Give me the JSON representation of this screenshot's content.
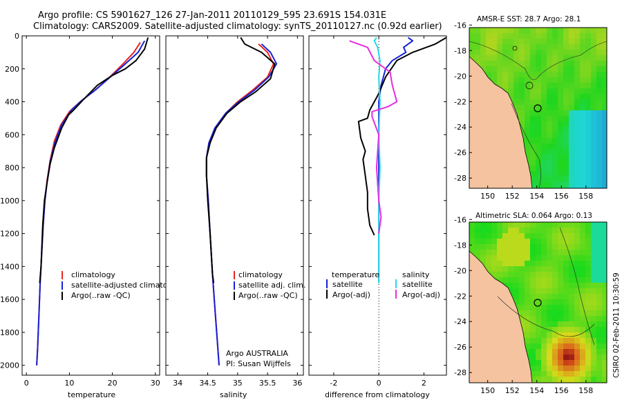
{
  "title": {
    "line1": "Argo profile: CS 5901627_126 27-Jan-2011 20110129_595 23.691S 154.031E",
    "line2": "Climatology: CARS2009. Satellite-adjusted climatology: synTS_20110127.nc (0.92d earlier)"
  },
  "depth_ticks": [
    "0",
    "200",
    "400",
    "600",
    "800",
    "1000",
    "1200",
    "1400",
    "1600",
    "1800",
    "2000"
  ],
  "chart_data": [
    {
      "type": "line",
      "name": "temperature",
      "xlabel": "temperature",
      "xlim": [
        -1,
        31
      ],
      "ylim": [
        0,
        2060
      ],
      "x_ticks": [
        "0",
        "10",
        "20",
        "30"
      ],
      "y_reversed": true,
      "series": [
        {
          "name": "climatology",
          "color": "#e8231f",
          "points": [
            [
              26.5,
              40
            ],
            [
              25,
              100
            ],
            [
              22.5,
              170
            ],
            [
              19,
              260
            ],
            [
              15.5,
              340
            ],
            [
              12.5,
              400
            ],
            [
              10,
              460
            ],
            [
              8,
              540
            ],
            [
              6.5,
              640
            ],
            [
              5.5,
              760
            ],
            [
              4.8,
              880
            ],
            [
              4.3,
              1000
            ],
            [
              3.9,
              1150
            ],
            [
              3.5,
              1350
            ],
            [
              3.2,
              1500
            ],
            [
              2.9,
              1700
            ],
            [
              2.6,
              1900
            ],
            [
              2.4,
              2000
            ]
          ]
        },
        {
          "name": "satellite-adjusted climatology",
          "color": "#1520d6",
          "points": [
            [
              27.5,
              30
            ],
            [
              26,
              100
            ],
            [
              23,
              170
            ],
            [
              19.5,
              250
            ],
            [
              16,
              330
            ],
            [
              13,
              390
            ],
            [
              10.5,
              450
            ],
            [
              8.2,
              540
            ],
            [
              6.6,
              650
            ],
            [
              5.5,
              770
            ],
            [
              4.8,
              890
            ],
            [
              4.3,
              1000
            ],
            [
              3.9,
              1150
            ],
            [
              3.5,
              1350
            ],
            [
              3.2,
              1500
            ],
            [
              2.9,
              1700
            ],
            [
              2.6,
              1900
            ],
            [
              2.4,
              2000
            ]
          ]
        },
        {
          "name": "Argo(..raw -QC)",
          "color": "#000000",
          "points": [
            [
              28.3,
              10
            ],
            [
              27.5,
              80
            ],
            [
              25.5,
              150
            ],
            [
              23,
              200
            ],
            [
              20,
              240
            ],
            [
              16.5,
              300
            ],
            [
              13.5,
              380
            ],
            [
              11,
              450
            ],
            [
              9.8,
              480
            ],
            [
              8.2,
              560
            ],
            [
              6.5,
              680
            ],
            [
              5.5,
              780
            ],
            [
              4.8,
              890
            ],
            [
              4.2,
              1000
            ],
            [
              3.8,
              1150
            ],
            [
              3.4,
              1400
            ],
            [
              3.1,
              1500
            ]
          ]
        }
      ],
      "legend": [
        "climatology",
        "satellite-adjusted climatology",
        "Argo(..raw -QC)"
      ]
    },
    {
      "type": "line",
      "name": "salinity",
      "xlabel": "salinity",
      "xlim": [
        33.8,
        36.1
      ],
      "ylim": [
        0,
        2060
      ],
      "x_ticks": [
        "34",
        "34.5",
        "35",
        "35.5",
        "36"
      ],
      "y_reversed": true,
      "series": [
        {
          "name": "climatology",
          "color": "#e8231f",
          "points": [
            [
              35.35,
              50
            ],
            [
              35.5,
              100
            ],
            [
              35.6,
              170
            ],
            [
              35.5,
              250
            ],
            [
              35.25,
              330
            ],
            [
              35.0,
              400
            ],
            [
              34.8,
              470
            ],
            [
              34.62,
              560
            ],
            [
              34.52,
              650
            ],
            [
              34.48,
              740
            ],
            [
              34.48,
              850
            ],
            [
              34.51,
              1000
            ],
            [
              34.54,
              1200
            ],
            [
              34.58,
              1450
            ],
            [
              34.62,
              1650
            ],
            [
              34.66,
              1850
            ],
            [
              34.69,
              2000
            ]
          ]
        },
        {
          "name": "satellite adj. clim.",
          "color": "#1520d6",
          "points": [
            [
              35.4,
              50
            ],
            [
              35.55,
              100
            ],
            [
              35.65,
              170
            ],
            [
              35.52,
              250
            ],
            [
              35.28,
              330
            ],
            [
              35.02,
              400
            ],
            [
              34.8,
              470
            ],
            [
              34.62,
              560
            ],
            [
              34.52,
              650
            ],
            [
              34.48,
              740
            ],
            [
              34.48,
              850
            ],
            [
              34.51,
              1000
            ],
            [
              34.54,
              1200
            ],
            [
              34.58,
              1450
            ],
            [
              34.62,
              1650
            ],
            [
              34.66,
              1850
            ],
            [
              34.69,
              2000
            ]
          ]
        },
        {
          "name": "Argo(..raw -QC)",
          "color": "#000000",
          "points": [
            [
              35.05,
              10
            ],
            [
              35.12,
              50
            ],
            [
              35.4,
              100
            ],
            [
              35.62,
              170
            ],
            [
              35.55,
              260
            ],
            [
              35.3,
              340
            ],
            [
              35.05,
              400
            ],
            [
              34.82,
              470
            ],
            [
              34.64,
              560
            ],
            [
              34.54,
              650
            ],
            [
              34.48,
              740
            ],
            [
              34.48,
              850
            ],
            [
              34.5,
              1000
            ],
            [
              34.54,
              1200
            ],
            [
              34.58,
              1450
            ],
            [
              34.6,
              1500
            ]
          ]
        }
      ],
      "legend": [
        "climatology",
        "satellite adj. clim.",
        "Argo(..raw -QC)"
      ],
      "annotation": [
        "Argo AUSTRALIA",
        "PI: Susan Wijffels"
      ]
    },
    {
      "type": "line",
      "name": "difference from climatology",
      "xlabel": "difference from climatology",
      "xlim": [
        -3.1,
        3
      ],
      "ylim": [
        0,
        2060
      ],
      "x_ticks": [
        "-2",
        "0",
        "2"
      ],
      "y_reversed": true,
      "series": [
        {
          "name": "temperature satellite",
          "color": "#1520d6",
          "points": [
            [
              1.3,
              10
            ],
            [
              1.5,
              30
            ],
            [
              1.1,
              70
            ],
            [
              1.2,
              100
            ],
            [
              0.6,
              150
            ],
            [
              0.3,
              200
            ],
            [
              0.2,
              250
            ],
            [
              0.1,
              300
            ],
            [
              0,
              400
            ],
            [
              0,
              600
            ],
            [
              0,
              800
            ],
            [
              0,
              1000
            ],
            [
              0,
              1200
            ],
            [
              0,
              1400
            ],
            [
              0,
              1500
            ]
          ]
        },
        {
          "name": "temperature Argo(-adj)",
          "color": "#000000",
          "points": [
            [
              3,
              10
            ],
            [
              2.5,
              50
            ],
            [
              1.5,
              100
            ],
            [
              0.8,
              150
            ],
            [
              0.3,
              250
            ],
            [
              0,
              350
            ],
            [
              -0.4,
              450
            ],
            [
              -0.5,
              500
            ],
            [
              -0.9,
              520
            ],
            [
              -0.8,
              620
            ],
            [
              -0.6,
              700
            ],
            [
              -0.7,
              750
            ],
            [
              -0.6,
              850
            ],
            [
              -0.5,
              950
            ],
            [
              -0.5,
              1050
            ],
            [
              -0.4,
              1150
            ],
            [
              -0.2,
              1210
            ]
          ]
        },
        {
          "name": "salinity satellite",
          "color": "#22d8e6",
          "points": [
            [
              -0.1,
              10
            ],
            [
              -0.2,
              30
            ],
            [
              -0.05,
              70
            ],
            [
              0.05,
              150
            ],
            [
              0,
              250
            ],
            [
              0.05,
              400
            ],
            [
              0,
              600
            ],
            [
              0.05,
              800
            ],
            [
              0,
              1000
            ],
            [
              0,
              1200
            ],
            [
              0,
              1400
            ],
            [
              0,
              1500
            ]
          ]
        },
        {
          "name": "salinity Argo(-adj)",
          "color": "#e82be0",
          "points": [
            [
              -1.3,
              30
            ],
            [
              -0.5,
              70
            ],
            [
              -0.2,
              150
            ],
            [
              0.5,
              220
            ],
            [
              0.6,
              300
            ],
            [
              0.8,
              400
            ],
            [
              0.4,
              430
            ],
            [
              -0.3,
              460
            ],
            [
              -0.3,
              490
            ],
            [
              0,
              600
            ],
            [
              -0.1,
              800
            ],
            [
              0,
              1000
            ],
            [
              0.1,
              1100
            ],
            [
              0,
              1200
            ]
          ]
        }
      ],
      "legend_headers": [
        "temperature",
        "salinity"
      ],
      "legend": [
        "satellite",
        "Argo(-adj)",
        "satellite",
        "Argo(-adj)"
      ]
    },
    {
      "type": "heatmap",
      "name": "AMSR-E SST",
      "title": "AMSR-E SST: 28.7  Argo: 28.1",
      "x_ticks": [
        "150",
        "152",
        "154",
        "156",
        "158"
      ],
      "y_ticks": [
        "-16",
        "-18",
        "-20",
        "-22",
        "-24",
        "-26",
        "-28"
      ],
      "xlim": [
        148.5,
        159.7
      ],
      "ylim": [
        -28.8,
        -16.2
      ]
    },
    {
      "type": "heatmap",
      "name": "Altimetric SLA",
      "title": "Altimetric SLA: 0.064  Argo: 0.13",
      "x_ticks": [
        "150",
        "152",
        "154",
        "156",
        "158"
      ],
      "y_ticks": [
        "-16",
        "-18",
        "-20",
        "-22",
        "-24",
        "-26",
        "-28"
      ],
      "xlim": [
        148.5,
        159.7
      ],
      "ylim": [
        -28.8,
        -16.2
      ]
    }
  ],
  "side_stamp": "CSIRO 02-Feb-2011 10:30:59",
  "colors": {
    "land": "#f5c3a0",
    "axis": "#000000"
  }
}
